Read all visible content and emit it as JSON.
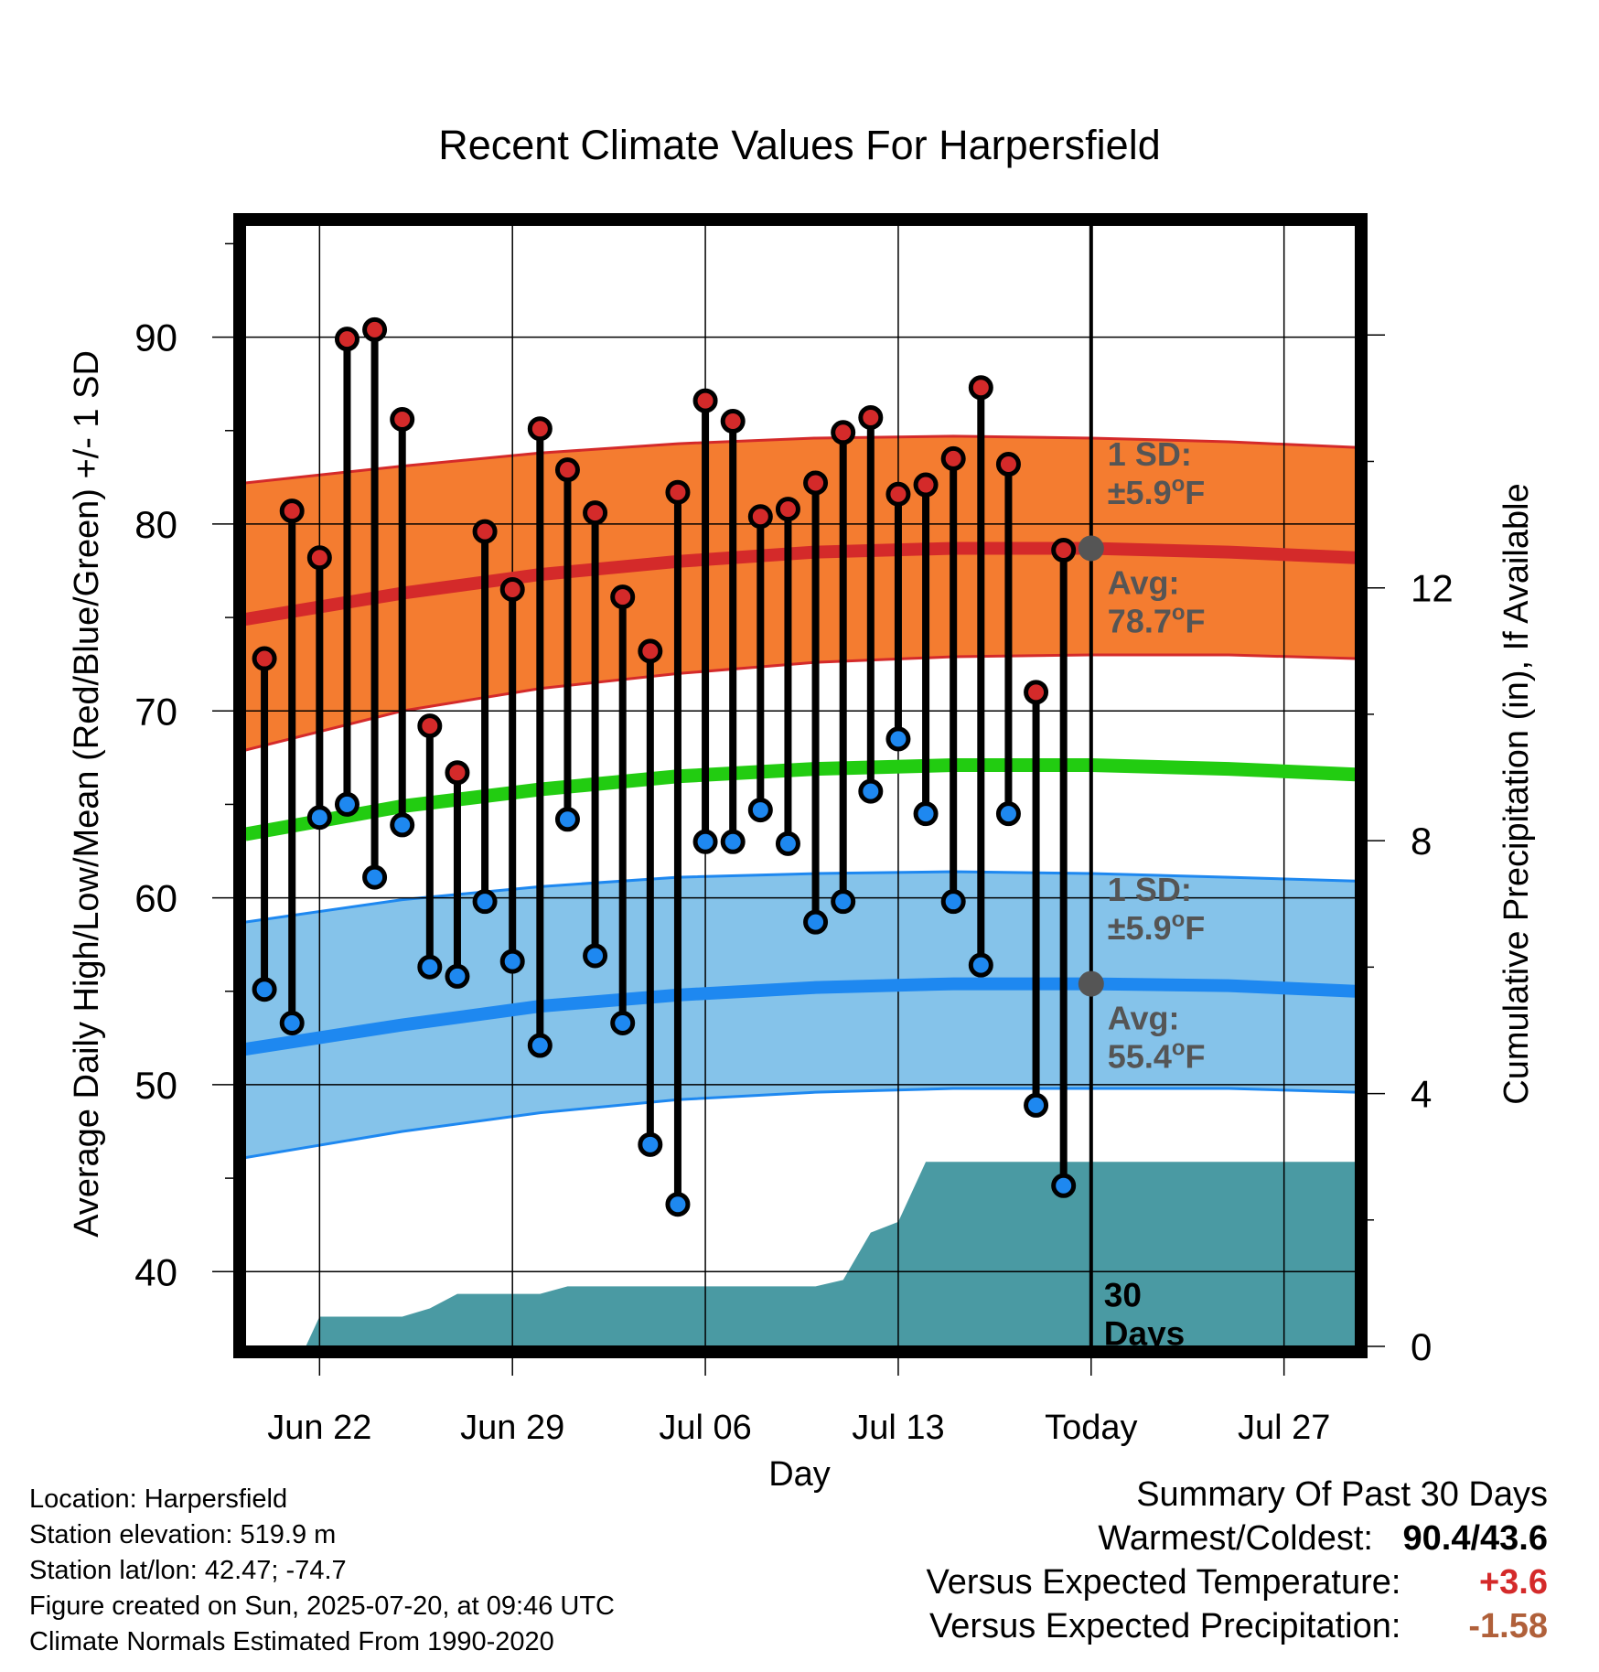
{
  "chart_data": {
    "type": "line",
    "title": "Recent Climate Values For Harpersfield",
    "xlabel": "Day",
    "ylabel": "Average Daily High/Low/Mean (Red/Blue/Green) +/- 1 SD",
    "y2label": "Cumulative Precipitation (in), If Available",
    "x_tick_labels": [
      "Jun 22",
      "Jun 29",
      "Jul 06",
      "Jul 13",
      "Today",
      "Jul 27"
    ],
    "x_tick_days": [
      2,
      9,
      16,
      23,
      30,
      37
    ],
    "x_range_days": [
      -0.7,
      39.6
    ],
    "ylim": [
      36,
      96
    ],
    "y_ticks": [
      40,
      50,
      60,
      70,
      80,
      90
    ],
    "y2lim": [
      0,
      17.74
    ],
    "y2_ticks": [
      0,
      4,
      8,
      12
    ],
    "grid": true,
    "observed_high": [
      {
        "day": 0,
        "value": 72.8
      },
      {
        "day": 1,
        "value": 80.7
      },
      {
        "day": 2,
        "value": 78.2
      },
      {
        "day": 3,
        "value": 89.9
      },
      {
        "day": 4,
        "value": 90.4
      },
      {
        "day": 5,
        "value": 85.6
      },
      {
        "day": 6,
        "value": 69.2
      },
      {
        "day": 7,
        "value": 66.7
      },
      {
        "day": 8,
        "value": 79.6
      },
      {
        "day": 9,
        "value": 76.5
      },
      {
        "day": 10,
        "value": 85.1
      },
      {
        "day": 11,
        "value": 82.9
      },
      {
        "day": 12,
        "value": 80.6
      },
      {
        "day": 13,
        "value": 76.1
      },
      {
        "day": 14,
        "value": 73.2
      },
      {
        "day": 15,
        "value": 81.7
      },
      {
        "day": 16,
        "value": 86.6
      },
      {
        "day": 17,
        "value": 85.5
      },
      {
        "day": 18,
        "value": 80.4
      },
      {
        "day": 19,
        "value": 80.8
      },
      {
        "day": 20,
        "value": 82.2
      },
      {
        "day": 21,
        "value": 84.9
      },
      {
        "day": 22,
        "value": 85.7
      },
      {
        "day": 23,
        "value": 81.6
      },
      {
        "day": 24,
        "value": 82.1
      },
      {
        "day": 25,
        "value": 83.5
      },
      {
        "day": 26,
        "value": 87.3
      },
      {
        "day": 27,
        "value": 83.2
      },
      {
        "day": 28,
        "value": 71.0
      },
      {
        "day": 29,
        "value": 78.6
      }
    ],
    "observed_low": [
      {
        "day": 0,
        "value": 55.1
      },
      {
        "day": 1,
        "value": 53.3
      },
      {
        "day": 2,
        "value": 64.3
      },
      {
        "day": 3,
        "value": 65.0
      },
      {
        "day": 4,
        "value": 61.1
      },
      {
        "day": 5,
        "value": 63.9
      },
      {
        "day": 6,
        "value": 56.3
      },
      {
        "day": 7,
        "value": 55.8
      },
      {
        "day": 8,
        "value": 59.8
      },
      {
        "day": 9,
        "value": 56.6
      },
      {
        "day": 10,
        "value": 52.1
      },
      {
        "day": 11,
        "value": 64.2
      },
      {
        "day": 12,
        "value": 56.9
      },
      {
        "day": 13,
        "value": 53.3
      },
      {
        "day": 14,
        "value": 46.8
      },
      {
        "day": 15,
        "value": 43.6
      },
      {
        "day": 16,
        "value": 63.0
      },
      {
        "day": 17,
        "value": 63.0
      },
      {
        "day": 18,
        "value": 64.7
      },
      {
        "day": 19,
        "value": 62.9
      },
      {
        "day": 20,
        "value": 58.7
      },
      {
        "day": 21,
        "value": 59.8
      },
      {
        "day": 22,
        "value": 65.7
      },
      {
        "day": 23,
        "value": 68.5
      },
      {
        "day": 24,
        "value": 64.5
      },
      {
        "day": 25,
        "value": 59.8
      },
      {
        "day": 26,
        "value": 56.4
      },
      {
        "day": 27,
        "value": 64.5
      },
      {
        "day": 28,
        "value": 48.9
      },
      {
        "day": 29,
        "value": 44.6
      }
    ],
    "normal_high_mean": [
      {
        "day": -0.7,
        "value": 74.9
      },
      {
        "day": 5,
        "value": 76.3
      },
      {
        "day": 10,
        "value": 77.3
      },
      {
        "day": 15,
        "value": 78.0
      },
      {
        "day": 20,
        "value": 78.5
      },
      {
        "day": 25,
        "value": 78.7
      },
      {
        "day": 30,
        "value": 78.7
      },
      {
        "day": 35,
        "value": 78.5
      },
      {
        "day": 39.6,
        "value": 78.2
      }
    ],
    "normal_high_band": [
      {
        "day": -0.7,
        "lower": 67.9,
        "upper": 82.2
      },
      {
        "day": 5,
        "lower": 70.0,
        "upper": 83.1
      },
      {
        "day": 10,
        "lower": 71.2,
        "upper": 83.8
      },
      {
        "day": 15,
        "lower": 72.0,
        "upper": 84.3
      },
      {
        "day": 20,
        "lower": 72.6,
        "upper": 84.6
      },
      {
        "day": 25,
        "lower": 72.9,
        "upper": 84.7
      },
      {
        "day": 30,
        "lower": 73.0,
        "upper": 84.6
      },
      {
        "day": 35,
        "lower": 73.0,
        "upper": 84.4
      },
      {
        "day": 39.6,
        "lower": 72.8,
        "upper": 84.1
      }
    ],
    "normal_mean": [
      {
        "day": -0.7,
        "value": 63.4
      },
      {
        "day": 5,
        "value": 64.9
      },
      {
        "day": 10,
        "value": 65.8
      },
      {
        "day": 15,
        "value": 66.5
      },
      {
        "day": 20,
        "value": 66.9
      },
      {
        "day": 25,
        "value": 67.1
      },
      {
        "day": 30,
        "value": 67.1
      },
      {
        "day": 35,
        "value": 66.9
      },
      {
        "day": 39.6,
        "value": 66.6
      }
    ],
    "normal_low_mean": [
      {
        "day": -0.7,
        "value": 51.9
      },
      {
        "day": 5,
        "value": 53.2
      },
      {
        "day": 10,
        "value": 54.2
      },
      {
        "day": 15,
        "value": 54.8
      },
      {
        "day": 20,
        "value": 55.2
      },
      {
        "day": 25,
        "value": 55.4
      },
      {
        "day": 30,
        "value": 55.4
      },
      {
        "day": 35,
        "value": 55.3
      },
      {
        "day": 39.6,
        "value": 55.0
      }
    ],
    "normal_low_band": [
      {
        "day": -0.7,
        "lower": 46.1,
        "upper": 58.7
      },
      {
        "day": 5,
        "lower": 47.5,
        "upper": 59.9
      },
      {
        "day": 10,
        "lower": 48.5,
        "upper": 60.6
      },
      {
        "day": 15,
        "lower": 49.2,
        "upper": 61.1
      },
      {
        "day": 20,
        "lower": 49.6,
        "upper": 61.3
      },
      {
        "day": 25,
        "lower": 49.8,
        "upper": 61.4
      },
      {
        "day": 30,
        "lower": 49.8,
        "upper": 61.3
      },
      {
        "day": 35,
        "lower": 49.8,
        "upper": 61.1
      },
      {
        "day": 39.6,
        "lower": 49.6,
        "upper": 60.9
      }
    ],
    "cumulative_precip": [
      {
        "day": -0.7,
        "value": 0
      },
      {
        "day": 1.5,
        "value": 0
      },
      {
        "day": 2,
        "value": 0.47
      },
      {
        "day": 5,
        "value": 0.47
      },
      {
        "day": 6,
        "value": 0.6
      },
      {
        "day": 7,
        "value": 0.83
      },
      {
        "day": 10,
        "value": 0.83
      },
      {
        "day": 11,
        "value": 0.95
      },
      {
        "day": 20,
        "value": 0.95
      },
      {
        "day": 21,
        "value": 1.05
      },
      {
        "day": 22,
        "value": 1.8
      },
      {
        "day": 23,
        "value": 1.97
      },
      {
        "day": 24,
        "value": 2.92
      },
      {
        "day": 39.6,
        "value": 2.92
      }
    ],
    "today_day": 30,
    "colors": {
      "high": "#d42a2a",
      "high_band": "#f47c30",
      "high_band_edge": "#d42a2a",
      "mean": "#22cc11",
      "low": "#1e88f0",
      "low_band": "#85c3ea",
      "low_band_edge": "#1e88f0",
      "precip": "#4a9aa3",
      "annotation": "#555555"
    },
    "annotations": {
      "high_sd_label": "1 SD:",
      "high_sd_value": "±5.9",
      "high_avg_label": "Avg:",
      "high_avg_value": "78.7",
      "low_sd_label": "1 SD:",
      "low_sd_value": "±5.9",
      "low_avg_label": "Avg:",
      "low_avg_value": "55.4",
      "degree_unit": "o",
      "f_unit": "F",
      "days_count": "30",
      "days_word": "Days"
    }
  },
  "footer": {
    "location": "Location: Harpersfield",
    "elevation": "Station elevation: 519.9 m",
    "latlon": "Station lat/lon: 42.47; -74.7",
    "created": "Figure created on Sun, 2025-07-20, at 09:46 UTC",
    "normals": "Climate Normals Estimated From 1990-2020"
  },
  "summary": {
    "title": "Summary Of Past 30 Days",
    "warmest_label": "Warmest/Coldest:",
    "warmest_value": "90.4/43.6",
    "temp_label": "Versus Expected Temperature:",
    "temp_value": "+3.6",
    "temp_color": "#d42a2a",
    "precip_label": "Versus Expected Precipitation:",
    "precip_value": "-1.58",
    "precip_color": "#b0603a"
  }
}
